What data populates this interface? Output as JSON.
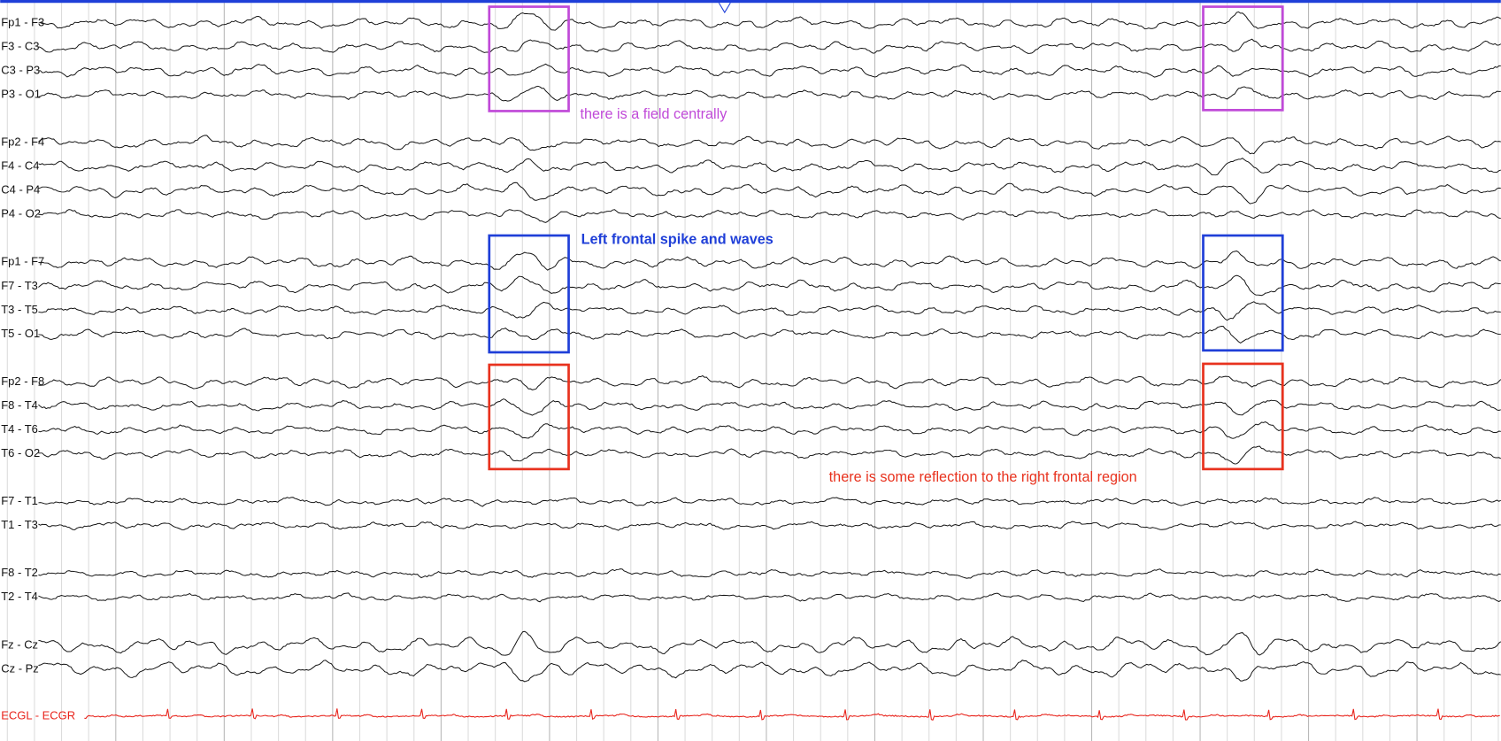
{
  "channels": [
    "Fp1 - F3",
    "F3 - C3",
    "C3 - P3",
    "P3 - O1",
    "Fp2 - F4",
    "F4 - C4",
    "C4 - P4",
    "P4 - O2",
    "Fp1 - F7",
    "F7 - T3",
    "T3 - T5",
    "T5 - O1",
    "Fp2 - F8",
    "F8 - T4",
    "T4 - T6",
    "T6 - O2",
    "F7 - T1",
    "T1 - T3",
    "F8 - T2",
    "T2 - T4",
    "Fz - Cz",
    "Cz - Pz"
  ],
  "ecg_channel": "ECGL - ECGR",
  "ecg_color": "#e8231b",
  "annotations": [
    {
      "text": "there is a field centrally",
      "color": "#c04ad8",
      "bold": false
    },
    {
      "text": "Left frontal spike and waves",
      "color": "#1f3fd8",
      "bold": true
    },
    {
      "text": "there is some reflection to the right frontal region",
      "color": "#e8321e",
      "bold": false
    }
  ]
}
